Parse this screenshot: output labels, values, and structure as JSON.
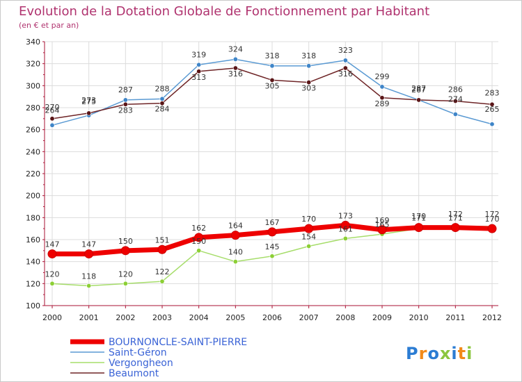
{
  "colors": {
    "title": "#b0336f",
    "grid": "#dcdcdc",
    "axis": "#aa1133",
    "series": [
      "#ee0000",
      "#5a9ad3",
      "#a6dd6a",
      "#6e2426"
    ],
    "markers": [
      "#ee0000",
      "#3f85c8",
      "#8ccf35",
      "#5a1517"
    ]
  },
  "brand": {
    "name": "Proxiti"
  },
  "chart_data": {
    "type": "line",
    "title": "Evolution de la Dotation Globale de Fonctionnement par Habitant",
    "subtitle": "(en € et par an)",
    "xlabel": "",
    "ylabel": "",
    "ylim": [
      100,
      340
    ],
    "yticks": [
      100,
      120,
      140,
      160,
      180,
      200,
      220,
      240,
      260,
      280,
      300,
      320,
      340
    ],
    "grid": true,
    "legend_position": "bottom-left",
    "x": [
      "2000",
      "2001",
      "2002",
      "2003",
      "2004",
      "2005",
      "2006",
      "2007",
      "2008",
      "2009",
      "2010",
      "2011",
      "2012"
    ],
    "series": [
      {
        "name": "BOURNONCLE-SAINT-PIERRE",
        "values": [
          147,
          147,
          150,
          151,
          162,
          164,
          167,
          170,
          173,
          169,
          171,
          171,
          170
        ]
      },
      {
        "name": "Saint-Géron",
        "values": [
          264,
          273,
          287,
          288,
          319,
          324,
          318,
          318,
          323,
          299,
          287,
          274,
          265
        ]
      },
      {
        "name": "Vergongheon",
        "values": [
          120,
          118,
          120,
          122,
          150,
          140,
          145,
          154,
          161,
          165,
          170,
          172,
          172
        ]
      },
      {
        "name": "Beaumont",
        "values": [
          270,
          275,
          283,
          284,
          313,
          316,
          305,
          303,
          316,
          289,
          287,
          286,
          283
        ]
      }
    ]
  }
}
